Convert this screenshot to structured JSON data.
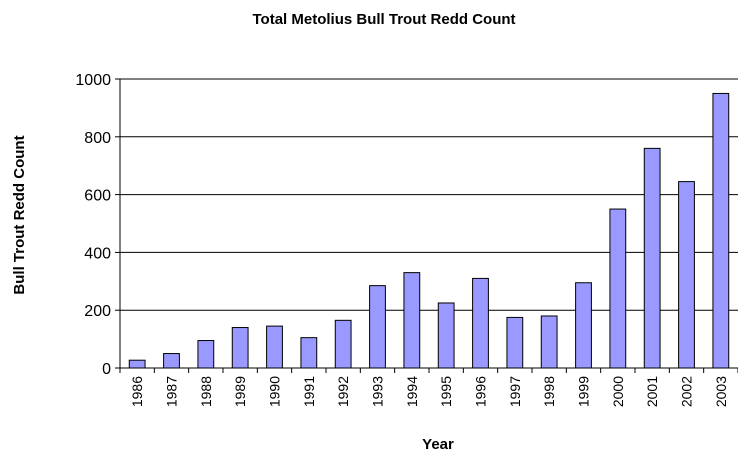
{
  "chart_data": {
    "type": "bar",
    "title": "Total Metolius Bull Trout Redd Count",
    "xlabel": "Year",
    "ylabel": "Bull Trout Redd Count",
    "categories": [
      "1986",
      "1987",
      "1988",
      "1989",
      "1990",
      "1991",
      "1992",
      "1993",
      "1994",
      "1995",
      "1996",
      "1997",
      "1998",
      "1999",
      "2000",
      "2001",
      "2002",
      "2003"
    ],
    "values": [
      27,
      50,
      95,
      140,
      145,
      105,
      165,
      285,
      330,
      225,
      310,
      175,
      180,
      295,
      550,
      760,
      645,
      950
    ],
    "ylim": [
      0,
      1000
    ],
    "yticks": [
      "0",
      "200",
      "400",
      "600",
      "800",
      "1000"
    ],
    "grid": true,
    "legend": "none",
    "bar_color": "#9999ff"
  }
}
